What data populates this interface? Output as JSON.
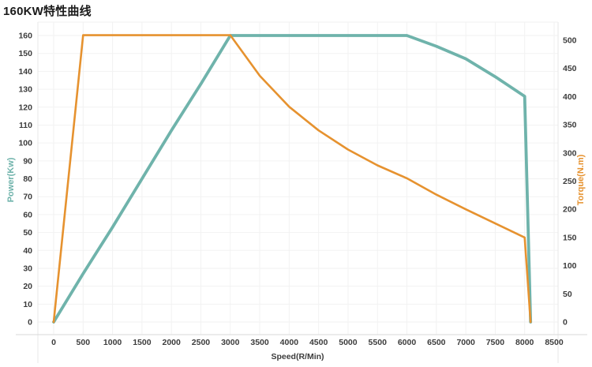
{
  "title": "160KW特性曲线",
  "colors": {
    "power": "#6FB3AB",
    "torque": "#E6922F",
    "tick_text": "#3C3C3C",
    "title_text": "#1A1A1A",
    "grid": "#F2F2F2",
    "frame": "#E7E7E7",
    "axis_line": "#D9D9D9",
    "background": "#FFFFFF"
  },
  "chart_data": {
    "type": "line",
    "title": "160KW特性曲线",
    "xlabel": "Speed(R/Min)",
    "x_ticks": [
      0,
      500,
      1000,
      1500,
      2000,
      2500,
      3000,
      3500,
      4000,
      4500,
      5000,
      5500,
      6000,
      6500,
      7000,
      7500,
      8000,
      8500
    ],
    "axes": {
      "left": {
        "label": "Power(Kw)",
        "min": 0,
        "max": 160,
        "ticks": [
          0,
          10,
          20,
          30,
          40,
          50,
          60,
          70,
          80,
          90,
          100,
          110,
          120,
          130,
          140,
          150,
          160
        ]
      },
      "right": {
        "label": "Torque(N.m)",
        "min": 0,
        "max": 500,
        "ticks": [
          0,
          50,
          100,
          150,
          200,
          250,
          300,
          350,
          400,
          450,
          500
        ]
      }
    },
    "series": [
      {
        "name": "Power(Kw)",
        "axis": "left",
        "color": "#6FB3AB",
        "width": 3.8,
        "points": [
          [
            0,
            0
          ],
          [
            500,
            27
          ],
          [
            1000,
            53
          ],
          [
            1500,
            80
          ],
          [
            2000,
            107
          ],
          [
            2500,
            133
          ],
          [
            3000,
            160
          ],
          [
            3500,
            160
          ],
          [
            4000,
            160
          ],
          [
            4500,
            160
          ],
          [
            5000,
            160
          ],
          [
            5500,
            160
          ],
          [
            6000,
            160
          ],
          [
            6500,
            154
          ],
          [
            7000,
            147
          ],
          [
            7500,
            137
          ],
          [
            8000,
            126
          ],
          [
            8100,
            0
          ]
        ]
      },
      {
        "name": "Torque(N.m)",
        "axis": "right",
        "color": "#E6922F",
        "width": 2.6,
        "points": [
          [
            0,
            0
          ],
          [
            500,
            509
          ],
          [
            1000,
            509
          ],
          [
            1500,
            509
          ],
          [
            2000,
            509
          ],
          [
            2500,
            509
          ],
          [
            3000,
            509
          ],
          [
            3500,
            437
          ],
          [
            4000,
            382
          ],
          [
            4500,
            340
          ],
          [
            5000,
            306
          ],
          [
            5500,
            278
          ],
          [
            6000,
            255
          ],
          [
            6500,
            226
          ],
          [
            7000,
            200
          ],
          [
            7500,
            175
          ],
          [
            8000,
            150
          ],
          [
            8100,
            0
          ]
        ]
      }
    ],
    "layout": {
      "grid": true,
      "legend": "none",
      "x_range": [
        0,
        8500
      ],
      "gridlines_from": "left-axis"
    }
  }
}
